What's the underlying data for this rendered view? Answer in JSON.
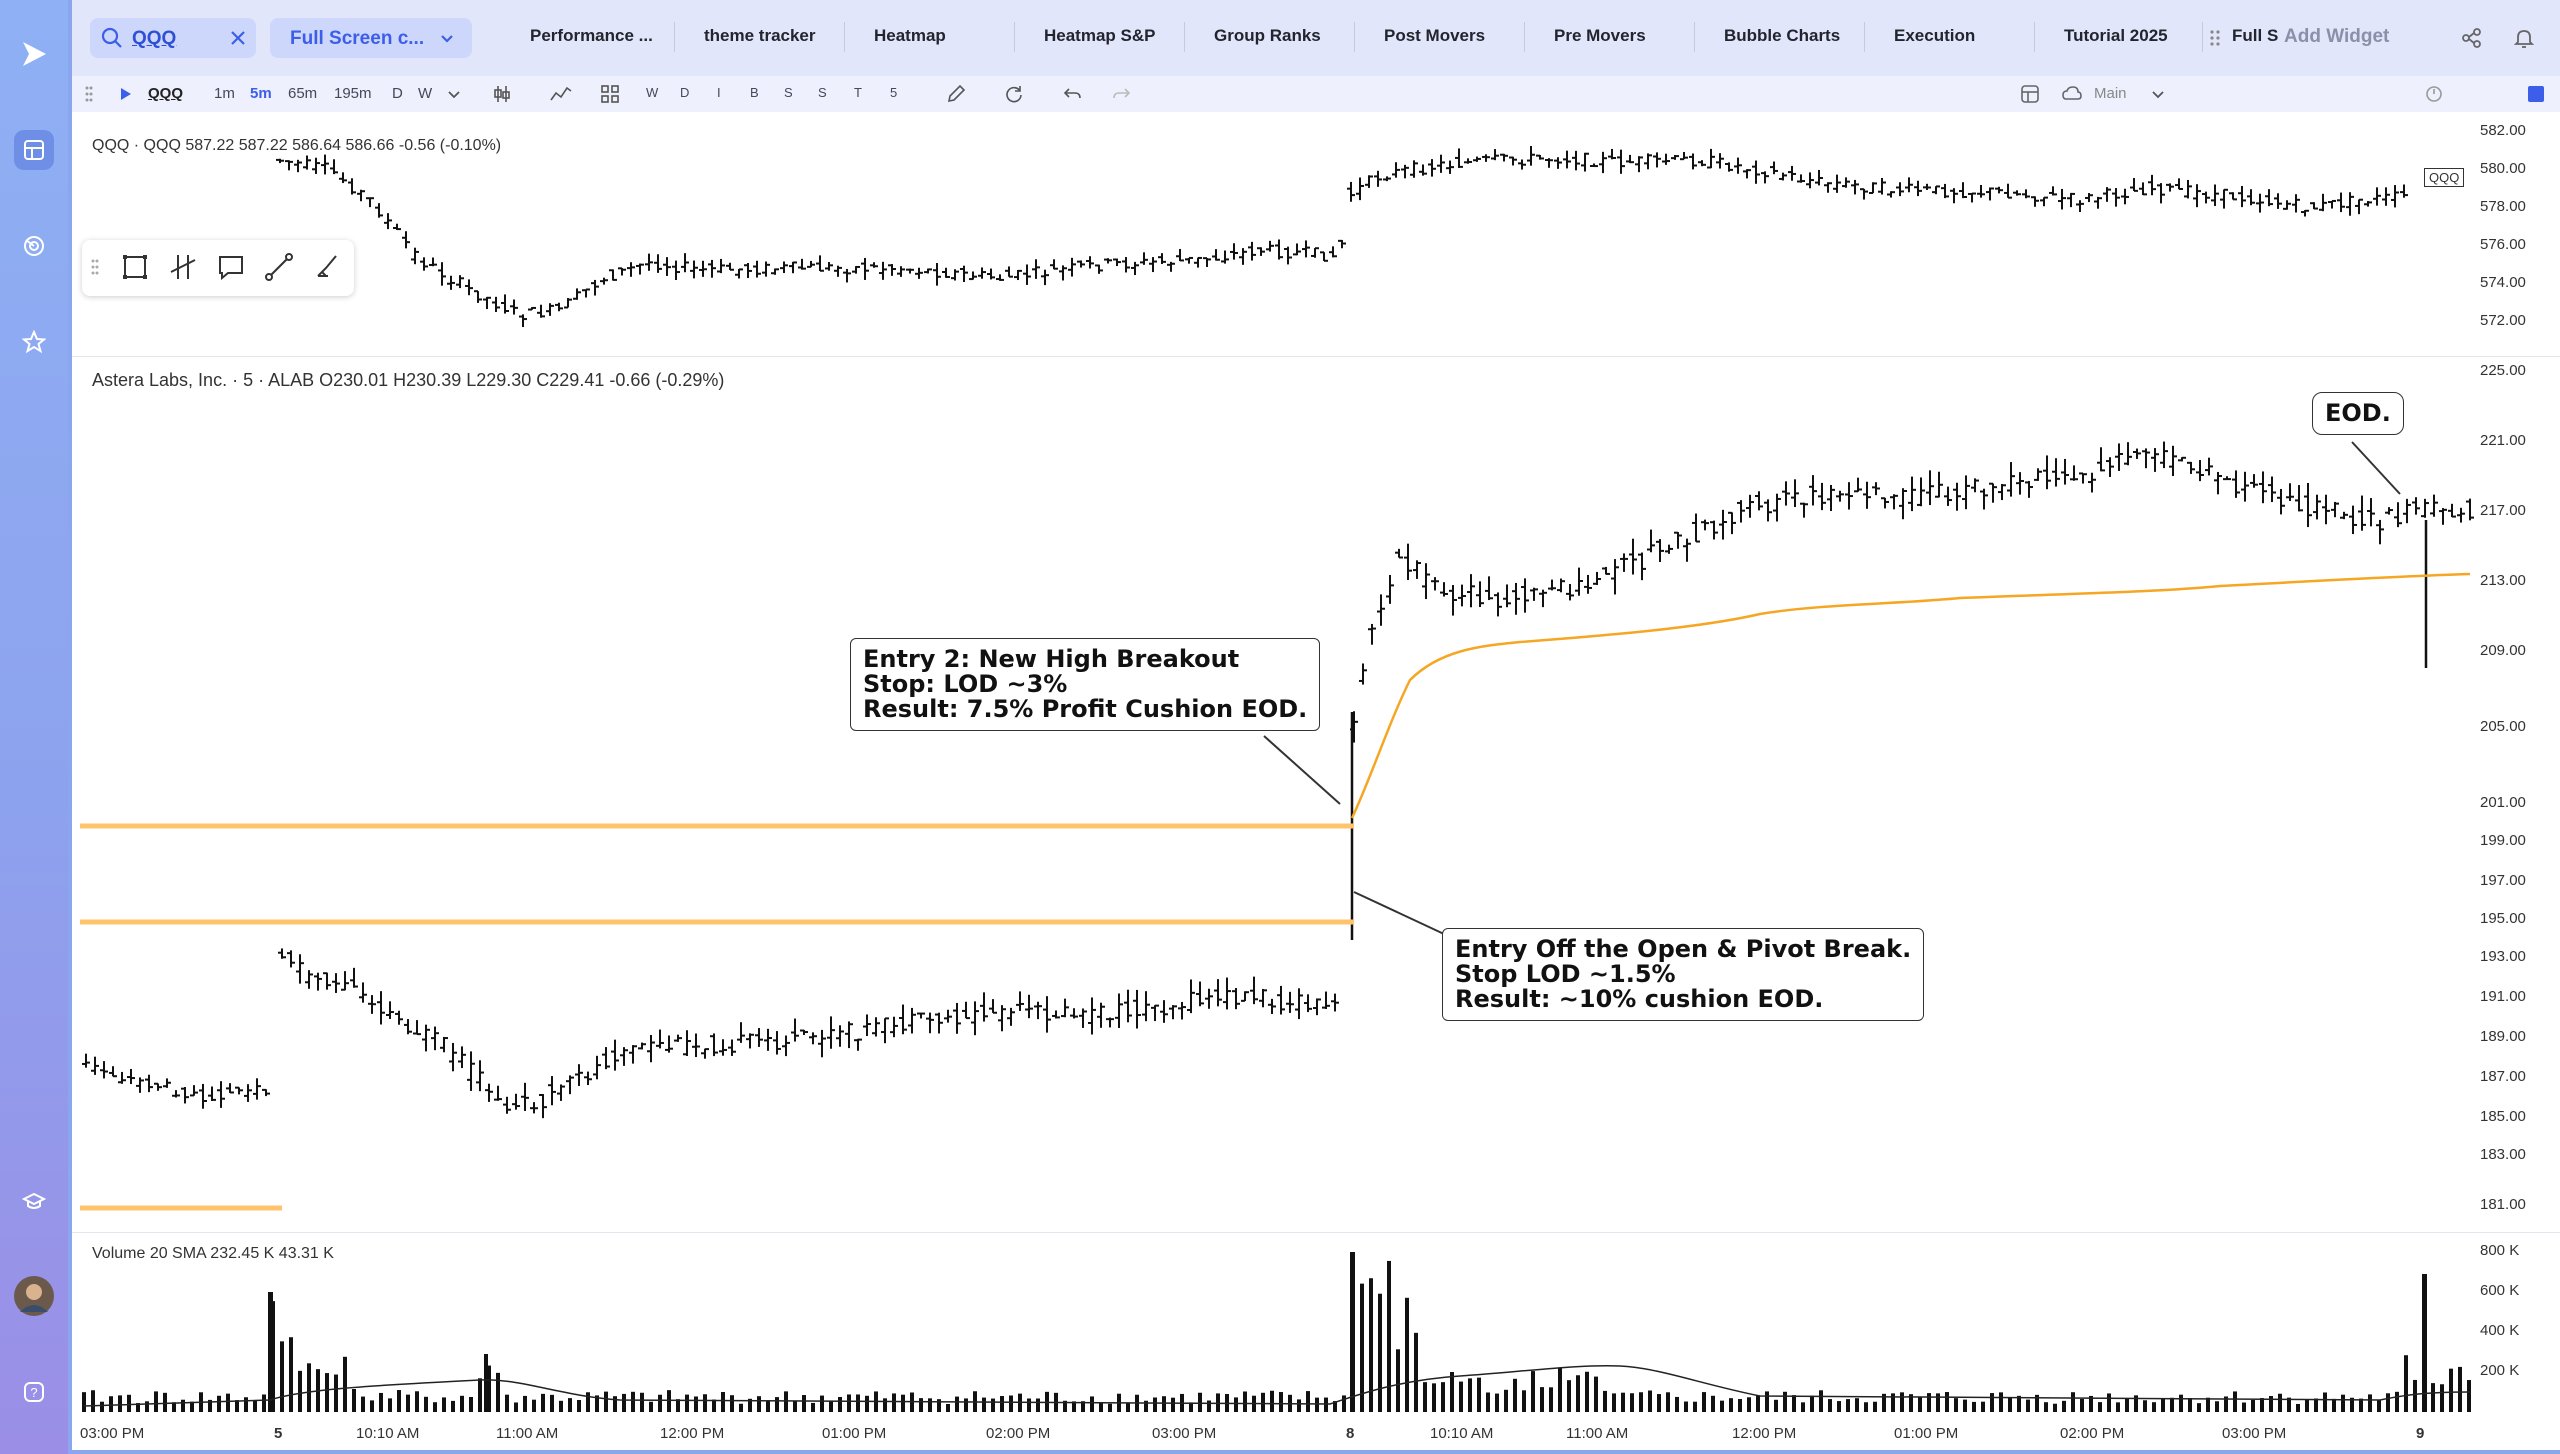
{
  "search": {
    "value": "QQQ"
  },
  "layout_selector": {
    "label": "Full Screen c..."
  },
  "tabs": [
    "Performance ...",
    "theme tracker",
    "Heatmap",
    "Heatmap S&P",
    "Group Ranks",
    "Post Movers",
    "Pre Movers",
    "Bubble Charts",
    "Execution",
    "Tutorial 2025",
    "Full S"
  ],
  "add_widget_label": "Add Widget",
  "toolbar": {
    "symbol": "QQQ",
    "intervals": [
      "1m",
      "5m",
      "65m",
      "195m",
      "D",
      "W"
    ],
    "active_interval": "5m",
    "letters": [
      "W",
      "D",
      "I",
      "B",
      "S",
      "S",
      "T",
      "5"
    ],
    "template_label": "Main"
  },
  "qqq_pane": {
    "legend": "QQQ · QQQ  587.22  587.22  586.64  586.66  -0.56 (-0.10%)",
    "price_tag": "QQQ",
    "yticks": [
      "582.00",
      "580.00",
      "578.00",
      "576.00",
      "574.00",
      "572.00"
    ]
  },
  "alab_pane": {
    "legend": "Astera Labs, Inc. · 5 · ALAB  O230.01  H230.39  L229.30  C229.41  -0.66 (-0.29%)",
    "yticks": [
      "225.00",
      "221.00",
      "217.00",
      "213.00",
      "209.00",
      "205.00",
      "201.00",
      "199.00",
      "197.00",
      "195.00",
      "193.00",
      "191.00",
      "189.00",
      "187.00",
      "185.00",
      "183.00",
      "181.00"
    ]
  },
  "volume_pane": {
    "legend": "Volume 20 SMA  232.45 K  43.31 K",
    "yticks": [
      "800 K",
      "600 K",
      "400 K",
      "200 K"
    ]
  },
  "xticks": [
    "03:00 PM",
    "5",
    "10:10 AM",
    "11:00 AM",
    "12:00 PM",
    "01:00 PM",
    "02:00 PM",
    "03:00 PM",
    "8",
    "10:10 AM",
    "11:00 AM",
    "12:00 PM",
    "01:00 PM",
    "02:00 PM",
    "03:00 PM",
    "9"
  ],
  "annotations": {
    "entry2": "Entry 2: New High Breakout\nStop: LOD ~3%\nResult: 7.5% Profit Cushion EOD.",
    "entry1": "Entry Off the Open & Pivot Break.\nStop LOD ~1.5%\nResult: ~10% cushion EOD.",
    "eod": "EOD."
  },
  "colors": {
    "accent": "#3c5ee8",
    "level_line": "#ffc46b",
    "vwap": "#f5a623"
  }
}
